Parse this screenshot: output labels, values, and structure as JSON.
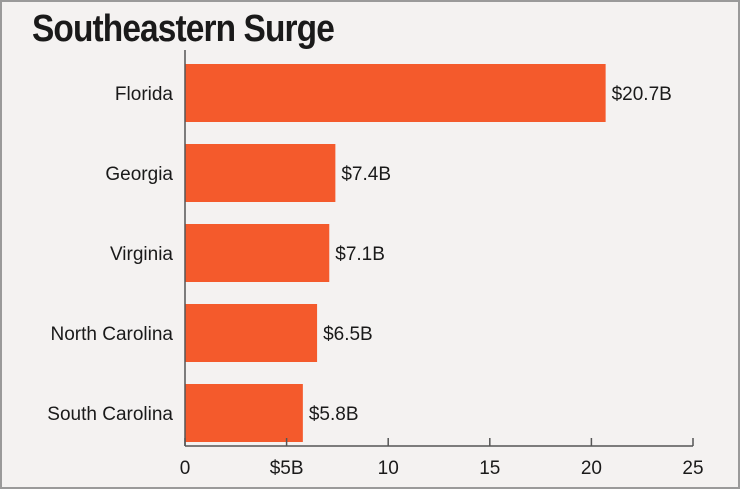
{
  "chart_data": {
    "type": "bar",
    "orientation": "horizontal",
    "title": "Southeastern Surge",
    "categories": [
      "Florida",
      "Georgia",
      "Virginia",
      "North Carolina",
      "South Carolina"
    ],
    "values": [
      20.7,
      7.4,
      7.1,
      6.5,
      5.8
    ],
    "value_labels": [
      "$20.7B",
      "$7.4B",
      "$7.1B",
      "$6.5B",
      "$5.8B"
    ],
    "xlim": [
      0,
      25
    ],
    "x_ticks": [
      0,
      5,
      10,
      15,
      20,
      25
    ],
    "x_tick_labels": [
      "0",
      "$5B",
      "10",
      "15",
      "20",
      "25"
    ],
    "xlabel": "",
    "ylabel": "",
    "grid": false,
    "bar_color": "#f45a2c"
  }
}
